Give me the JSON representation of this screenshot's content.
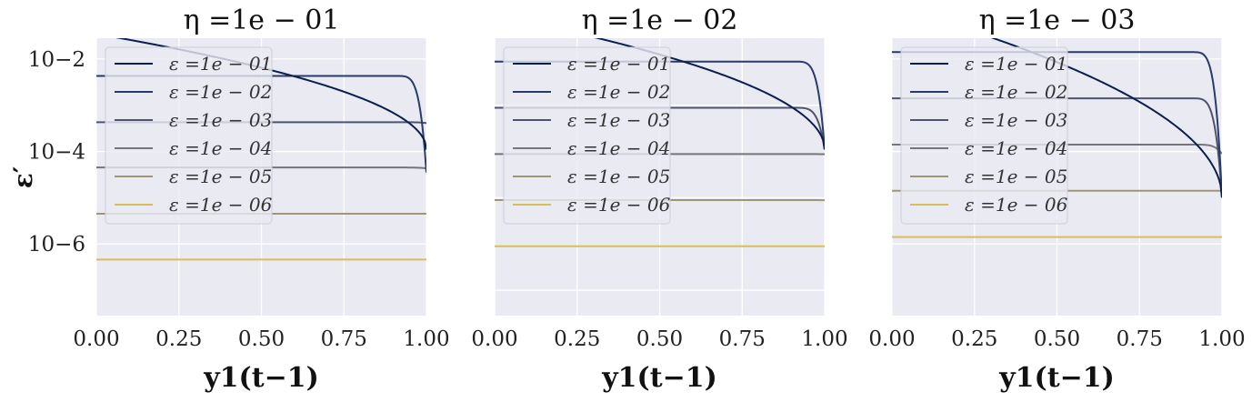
{
  "figure": {
    "ylabel": "ε′",
    "xlabel": "y1(t−1)"
  },
  "chart_data": [
    {
      "type": "line",
      "title": "η =1e − 01",
      "xlim": [
        0,
        1
      ],
      "ylim_log10": [
        -7.55,
        -1.55
      ],
      "xticks": [
        "0.00",
        "0.25",
        "0.50",
        "0.75",
        "1.00"
      ],
      "yticks": [
        {
          "exp": -2,
          "label": "10−2"
        },
        {
          "exp": -4,
          "label": "10−4"
        },
        {
          "exp": -6,
          "label": "10−6"
        }
      ],
      "legend": "upper-left",
      "series": [
        {
          "name": "ε =1e − 01",
          "color": "#0a1f4d",
          "plateau": 0.035,
          "end": 0.00011,
          "shape": "arc"
        },
        {
          "name": "ε =1e − 02",
          "color": "#283b6a",
          "plateau": 0.0043,
          "end": 3.5e-05,
          "shape": "flat"
        },
        {
          "name": "ε =1e − 03",
          "color": "#4e5470",
          "plateau": 0.00043,
          "end": 0.00041,
          "shape": "flat"
        },
        {
          "name": "ε =1e − 04",
          "color": "#76767a",
          "plateau": 4.5e-05,
          "end": 4.3e-05,
          "shape": "flat"
        },
        {
          "name": "ε =1e − 05",
          "color": "#a09677",
          "plateau": 4.5e-06,
          "end": 4.5e-06,
          "shape": "flat"
        },
        {
          "name": "ε =1e − 06",
          "color": "#d9bd5c",
          "plateau": 4.6e-07,
          "end": 4.6e-07,
          "shape": "flat"
        }
      ]
    },
    {
      "type": "line",
      "title": "η =1e − 02",
      "xlim": [
        0,
        1
      ],
      "ylim_log10": [
        -8.55,
        -2.55
      ],
      "xticks": [
        "0.00",
        "0.25",
        "0.50",
        "0.75",
        "1.00"
      ],
      "yticks": [],
      "legend": "upper-left",
      "series": [
        {
          "name": "ε =1e − 01",
          "color": "#0a1f4d",
          "plateau": 0.0089,
          "end": 1.1e-05,
          "shape": "arc"
        },
        {
          "name": "ε =1e − 02",
          "color": "#283b6a",
          "plateau": 0.00088,
          "end": 1.1e-05,
          "shape": "flat"
        },
        {
          "name": "ε =1e − 03",
          "color": "#4e5470",
          "plateau": 8.8e-05,
          "end": 1.1e-05,
          "shape": "flat"
        },
        {
          "name": "ε =1e − 04",
          "color": "#76767a",
          "plateau": 8.8e-06,
          "end": 8.7e-06,
          "shape": "flat"
        },
        {
          "name": "ε =1e − 05",
          "color": "#a09677",
          "plateau": 8.9e-07,
          "end": 8.8e-07,
          "shape": "flat"
        },
        {
          "name": "ε =1e − 06",
          "color": "#d9bd5c",
          "plateau": 8.9e-08,
          "end": 8.9e-08,
          "shape": "flat"
        }
      ]
    },
    {
      "type": "line",
      "title": "η =1e − 03",
      "xlim": [
        0,
        1
      ],
      "ylim_log10": [
        -9.55,
        -3.55
      ],
      "xticks": [
        "0.00",
        "0.25",
        "0.50",
        "0.75",
        "1.00"
      ],
      "yticks": [],
      "legend": "upper-left",
      "series": [
        {
          "name": "ε =1e − 01",
          "color": "#0a1f4d",
          "plateau": 0.0014,
          "end": 1e-07,
          "shape": "arc"
        },
        {
          "name": "ε =1e − 02",
          "color": "#283b6a",
          "plateau": 0.000141,
          "end": 1e-07,
          "shape": "flat"
        },
        {
          "name": "ε =1e − 03",
          "color": "#4e5470",
          "plateau": 1.41e-05,
          "end": 1e-07,
          "shape": "flat"
        },
        {
          "name": "ε =1e − 04",
          "color": "#76767a",
          "plateau": 1.41e-06,
          "end": 8.9e-07,
          "shape": "flat"
        },
        {
          "name": "ε =1e − 05",
          "color": "#a09677",
          "plateau": 1.41e-07,
          "end": 1.41e-07,
          "shape": "flat"
        },
        {
          "name": "ε =1e − 06",
          "color": "#d9bd5c",
          "plateau": 1.41e-08,
          "end": 1.41e-08,
          "shape": "flat"
        }
      ]
    }
  ]
}
